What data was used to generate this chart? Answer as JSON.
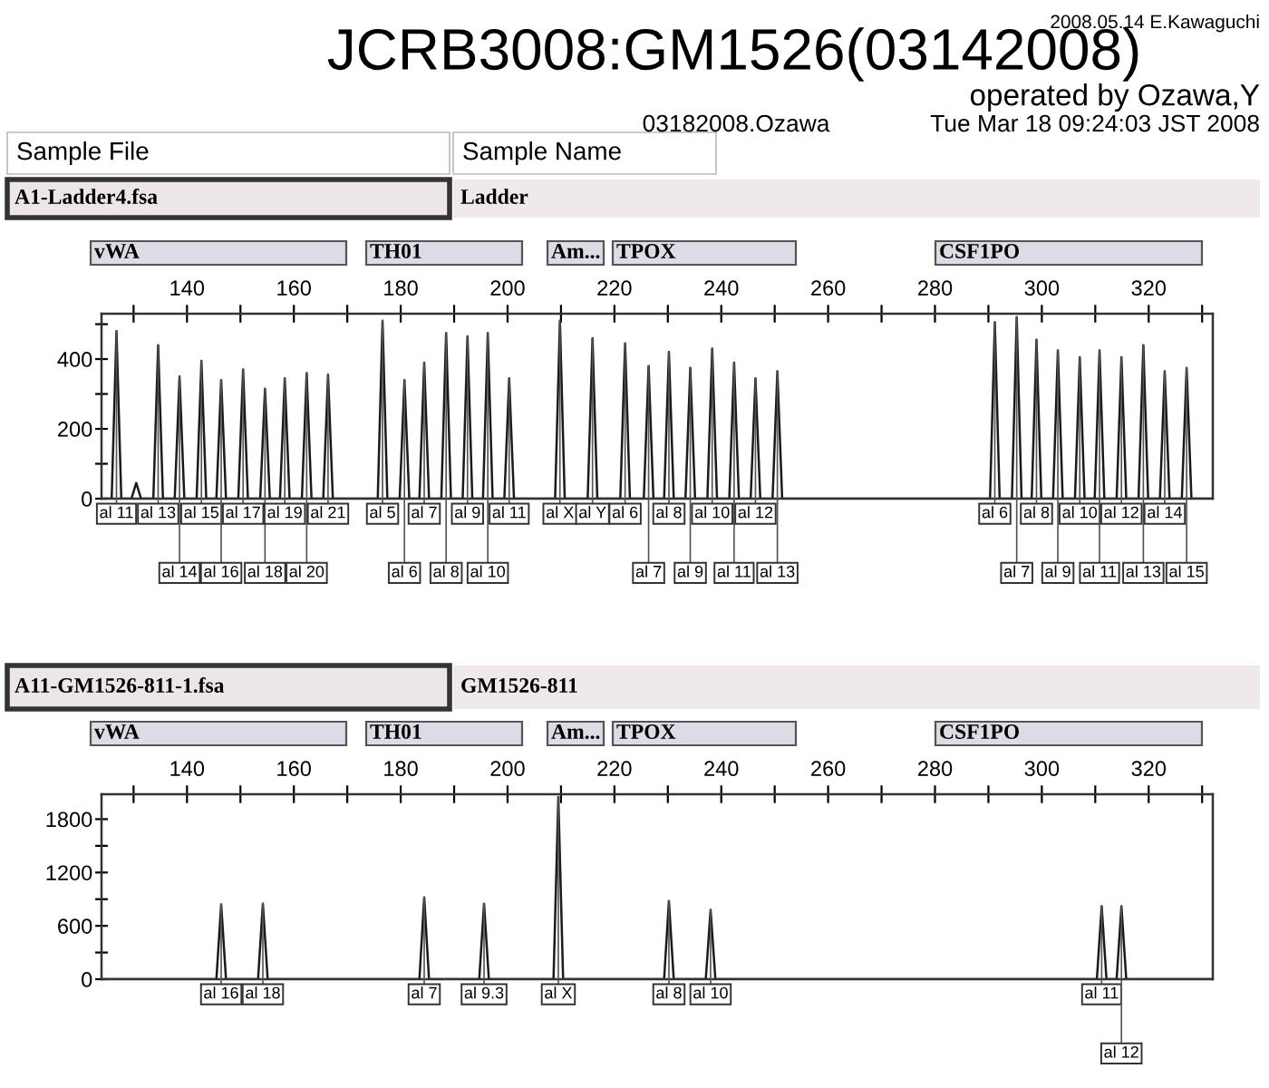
{
  "chart_data": [
    {
      "type": "line",
      "title": "JCRB3008:GM1526(03142008)",
      "color": "#1a1a1a",
      "annotations": [
        "2008.05.14 E.Kawaguchi",
        "operated by Ozawa,Y",
        "03182008.Ozawa",
        "Tue Mar 18 09:24:03 JST 2008",
        "Sample File",
        "Sample Name",
        "A1-Ladder4.fsa",
        "Ladder",
        "vWA",
        "TH01",
        "Am...",
        "TPOX",
        "CSF1PO",
        {
          "text": "al 11",
          "x": 126.8,
          "y": 480
        },
        {
          "text": "al 13",
          "x": 134.6,
          "y": 440
        },
        {
          "text": "al 14",
          "x": 138.6,
          "y": 350
        },
        {
          "text": "al 15",
          "x": 142.7,
          "y": 395
        },
        {
          "text": "al 16",
          "x": 146.4,
          "y": 340
        },
        {
          "text": "al 17",
          "x": 150.5,
          "y": 370
        },
        {
          "text": "al 18",
          "x": 154.6,
          "y": 315
        },
        {
          "text": "al 19",
          "x": 158.3,
          "y": 345
        },
        {
          "text": "al 20",
          "x": 162.4,
          "y": 360
        },
        {
          "text": "al 21",
          "x": 166.4,
          "y": 355
        },
        {
          "text": "al 5",
          "x": 176.6,
          "y": 510
        },
        {
          "text": "al 6",
          "x": 180.7,
          "y": 340
        },
        {
          "text": "al 7",
          "x": 184.4,
          "y": 390
        },
        {
          "text": "al 8",
          "x": 188.5,
          "y": 475
        },
        {
          "text": "al 9",
          "x": 192.5,
          "y": 465
        },
        {
          "text": "al 10",
          "x": 196.3,
          "y": 475
        },
        {
          "text": "al 11",
          "x": 200.3,
          "y": 345
        },
        {
          "text": "al X",
          "x": 209.8,
          "y": 510
        },
        {
          "text": "al Y",
          "x": 215.9,
          "y": 460
        },
        {
          "text": "al 6",
          "x": 222.0,
          "y": 445
        },
        {
          "text": "al 7",
          "x": 226.4,
          "y": 380
        },
        {
          "text": "al 8",
          "x": 230.2,
          "y": 420
        },
        {
          "text": "al 9",
          "x": 234.2,
          "y": 375
        },
        {
          "text": "al 10",
          "x": 238.3,
          "y": 430
        },
        {
          "text": "al 11",
          "x": 242.4,
          "y": 390
        },
        {
          "text": "al 12",
          "x": 246.4,
          "y": 345
        },
        {
          "text": "al 13",
          "x": 250.5,
          "y": 365
        },
        {
          "text": "al 6",
          "x": 291.2,
          "y": 505
        },
        {
          "text": "al 7",
          "x": 295.3,
          "y": 520
        },
        {
          "text": "al 8",
          "x": 299.0,
          "y": 455
        },
        {
          "text": "al 9",
          "x": 303.0,
          "y": 425
        },
        {
          "text": "al 10",
          "x": 307.1,
          "y": 405
        },
        {
          "text": "al 11",
          "x": 310.8,
          "y": 425
        },
        {
          "text": "al 12",
          "x": 314.9,
          "y": 405
        },
        {
          "text": "al 13",
          "x": 319.0,
          "y": 440
        },
        {
          "text": "al 14",
          "x": 323.0,
          "y": 365
        },
        {
          "text": "al 15",
          "x": 327.1,
          "y": 375
        }
      ],
      "xlim": [
        124,
        332
      ],
      "ylim": [
        0,
        530
      ],
      "xticks": [
        {
          "value": 130,
          "label": null
        },
        140,
        {
          "value": 150,
          "label": null
        },
        160,
        {
          "value": 170,
          "label": null
        },
        180,
        {
          "value": 190,
          "label": null
        },
        200,
        {
          "value": 210,
          "label": null
        },
        220,
        {
          "value": 230,
          "label": null
        },
        240,
        {
          "value": 250,
          "label": null
        },
        260,
        {
          "value": 270,
          "label": null
        },
        280,
        {
          "value": 290,
          "label": null
        },
        300,
        {
          "value": 310,
          "label": null
        },
        320,
        {
          "value": 330,
          "label": null
        }
      ],
      "yticks": [
        0,
        {
          "value": 100,
          "label": null
        },
        200,
        {
          "value": 300,
          "label": null
        },
        400,
        {
          "value": 500,
          "label": null
        }
      ],
      "x": [
        124.5,
        125.9,
        126.8,
        127.7,
        129.6,
        130.5,
        131.4,
        133.7,
        134.6,
        135.5,
        137.7,
        138.6,
        139.5,
        141.8,
        142.7,
        143.6,
        145.5,
        146.4,
        147.3,
        149.6,
        150.5,
        151.4,
        153.7,
        154.6,
        155.5,
        157.4,
        158.3,
        159.2,
        161.5,
        162.4,
        163.3,
        165.5,
        166.4,
        167.3,
        175.7,
        176.6,
        177.5,
        179.8,
        180.7,
        181.6,
        183.5,
        184.4,
        185.3,
        187.6,
        188.5,
        189.4,
        191.6,
        192.5,
        193.4,
        195.4,
        196.3,
        197.2,
        199.4,
        200.3,
        201.2,
        208.9,
        209.8,
        210.7,
        215.0,
        215.9,
        216.8,
        221.1,
        222.0,
        222.9,
        225.5,
        226.4,
        227.3,
        229.3,
        230.2,
        231.1,
        233.3,
        234.2,
        235.1,
        237.4,
        238.3,
        239.2,
        241.5,
        242.4,
        243.3,
        245.5,
        246.4,
        247.3,
        249.6,
        250.5,
        251.4,
        290.3,
        291.2,
        292.1,
        294.4,
        295.3,
        296.2,
        298.1,
        299.0,
        299.9,
        302.1,
        303.0,
        303.9,
        306.2,
        307.1,
        308.0,
        309.9,
        310.8,
        311.7,
        314.0,
        314.9,
        315.8,
        318.1,
        319.0,
        319.9,
        322.1,
        323.0,
        323.9,
        326.2,
        327.1,
        328.0,
        332
      ],
      "values": [
        0,
        0,
        480,
        0,
        0,
        45,
        0,
        0,
        440,
        0,
        0,
        350,
        0,
        0,
        395,
        0,
        0,
        340,
        0,
        0,
        370,
        0,
        0,
        315,
        0,
        0,
        345,
        0,
        0,
        360,
        0,
        0,
        355,
        0,
        0,
        510,
        0,
        0,
        340,
        0,
        0,
        390,
        0,
        0,
        475,
        0,
        0,
        465,
        0,
        0,
        475,
        0,
        0,
        345,
        0,
        0,
        510,
        0,
        0,
        460,
        0,
        0,
        445,
        0,
        0,
        380,
        0,
        0,
        420,
        0,
        0,
        375,
        0,
        0,
        430,
        0,
        0,
        390,
        0,
        0,
        345,
        0,
        0,
        365,
        0,
        0,
        505,
        0,
        0,
        520,
        0,
        0,
        455,
        0,
        0,
        425,
        0,
        0,
        405,
        0,
        0,
        425,
        0,
        0,
        405,
        0,
        0,
        440,
        0,
        0,
        365,
        0,
        0,
        375,
        0,
        0
      ]
    },
    {
      "type": "line",
      "color": "#1a1a1a",
      "annotations": [
        "A11-GM1526-811-1.fsa",
        "GM1526-811",
        "vWA",
        "TH01",
        "Am...",
        "TPOX",
        "CSF1PO",
        {
          "text": "al 16",
          "x": 146.4,
          "y": 840
        },
        {
          "text": "al 18",
          "x": 154.2,
          "y": 850
        },
        {
          "text": "al 7",
          "x": 184.4,
          "y": 920
        },
        {
          "text": "al 9.3",
          "x": 195.6,
          "y": 850
        },
        {
          "text": "al X",
          "x": 209.5,
          "y": 2050
        },
        {
          "text": "al 8",
          "x": 230.2,
          "y": 880
        },
        {
          "text": "al 10",
          "x": 238.0,
          "y": 780
        },
        {
          "text": "al 11",
          "x": 311.2,
          "y": 820
        },
        {
          "text": "al 12",
          "x": 314.9,
          "y": 820
        }
      ],
      "xlim": [
        124,
        332
      ],
      "ylim": [
        0,
        2080
      ],
      "xticks": [
        {
          "value": 130,
          "label": null
        },
        140,
        {
          "value": 150,
          "label": null
        },
        160,
        {
          "value": 170,
          "label": null
        },
        180,
        {
          "value": 190,
          "label": null
        },
        200,
        {
          "value": 210,
          "label": null
        },
        220,
        {
          "value": 230,
          "label": null
        },
        240,
        {
          "value": 250,
          "label": null
        },
        260,
        {
          "value": 270,
          "label": null
        },
        280,
        {
          "value": 290,
          "label": null
        },
        300,
        {
          "value": 310,
          "label": null
        },
        320,
        {
          "value": 330,
          "label": null
        }
      ],
      "yticks": [
        0,
        {
          "value": 300,
          "label": null
        },
        600,
        {
          "value": 900,
          "label": null
        },
        1200,
        {
          "value": 1500,
          "label": null
        },
        1800
      ],
      "x": [
        124.5,
        145.5,
        146.4,
        147.3,
        153.3,
        154.2,
        155.1,
        183.5,
        184.4,
        185.3,
        194.7,
        195.6,
        196.5,
        208.6,
        209.5,
        210.4,
        229.3,
        230.2,
        231.1,
        237.1,
        238.0,
        238.9,
        310.3,
        311.2,
        312.1,
        314.0,
        314.9,
        315.8,
        332
      ],
      "values": [
        0,
        0,
        840,
        0,
        0,
        850,
        0,
        0,
        920,
        0,
        0,
        850,
        0,
        0,
        2050,
        0,
        0,
        880,
        0,
        0,
        780,
        0,
        0,
        820,
        0,
        0,
        820,
        0,
        0
      ]
    }
  ]
}
